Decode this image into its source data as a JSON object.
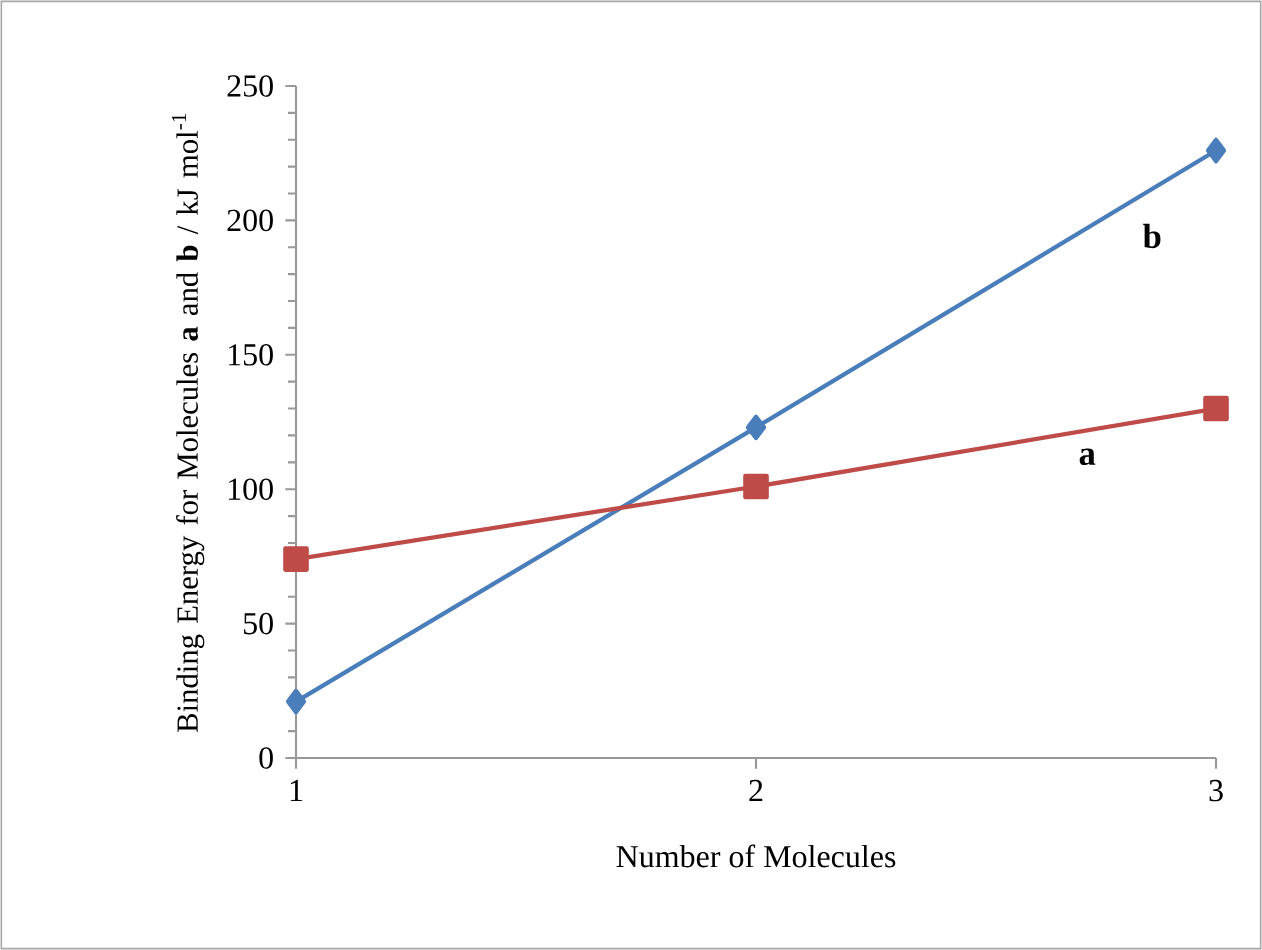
{
  "chart_data": {
    "type": "line",
    "xlabel": "Number of Molecules",
    "ylabel": "Binding Energy for Molecules **a** and **b** / kJ mol$^{-1}$",
    "x": [
      1,
      2,
      3
    ],
    "series": [
      {
        "name": "b",
        "color": "#4a7ebb",
        "marker": "diamond",
        "values": [
          21,
          123,
          226
        ]
      },
      {
        "name": "a",
        "color": "#be4b48",
        "marker": "square",
        "values": [
          74,
          101,
          130
        ]
      }
    ],
    "xlim": [
      1,
      3
    ],
    "xticks": [
      1,
      2,
      3
    ],
    "ylim": [
      0,
      250
    ],
    "yticks": [
      0,
      50,
      100,
      150,
      200,
      250
    ],
    "grid": false,
    "legend": false,
    "line_style": "solid"
  }
}
